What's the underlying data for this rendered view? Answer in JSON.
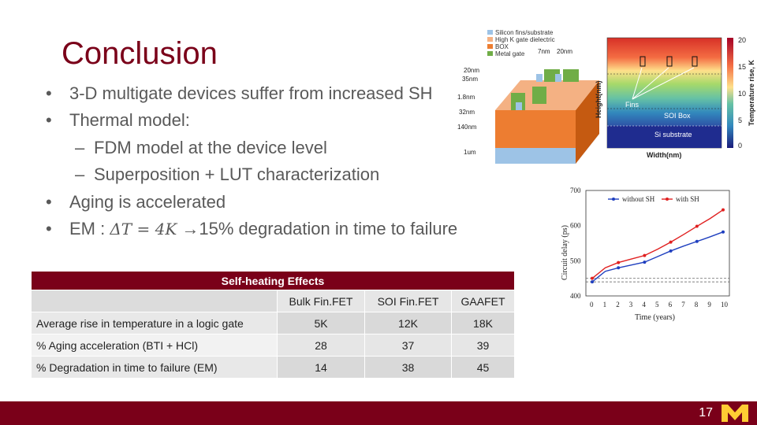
{
  "slide": {
    "title": "Conclusion",
    "bullets": [
      {
        "level": 1,
        "mark": "•",
        "text": "3-D multigate devices suffer from increased SH"
      },
      {
        "level": 1,
        "mark": "•",
        "text": "Thermal model:"
      },
      {
        "level": 2,
        "mark": "–",
        "text": "FDM model at the device level"
      },
      {
        "level": 2,
        "mark": "–",
        "text": "Superposition + LUT characterization"
      },
      {
        "level": 1,
        "mark": "•",
        "text": "Aging is accelerated"
      }
    ],
    "em_bullet": {
      "mark": "•",
      "prefix": "EM : ",
      "math": "ΔT = 4K",
      "arrow": " →",
      "suffix": "15% degradation in time to failure"
    },
    "page_number": "17"
  },
  "table": {
    "title": "Self-heating Effects",
    "columns": [
      "",
      "Bulk Fin.FET",
      "SOI Fin.FET",
      "GAAFET"
    ],
    "rows": [
      [
        "Average rise in temperature in a logic gate",
        "5K",
        "12K",
        "18K"
      ],
      [
        "% Aging acceleration (BTI + HCl)",
        "28",
        "37",
        "39"
      ],
      [
        "% Degradation in time to failure (EM)",
        "14",
        "38",
        "45"
      ]
    ]
  },
  "thermal_figure": {
    "legend": [
      "Silicon fins/substrate",
      "High K gate dielectric",
      "BOX",
      "Metal gate"
    ],
    "legend_colors": [
      "#9dc3e6",
      "#f4b183",
      "#ed7d31",
      "#70ad47"
    ],
    "dims": [
      "7nm",
      "20nm",
      "20nm",
      "35nm",
      "1.8nm",
      "32nm",
      "140nm",
      "1um"
    ],
    "heatmap_labels": [
      "Fins",
      "SOI Box",
      "Si substrate"
    ],
    "x_label": "Width(nm)",
    "y_label": "Height(nm)",
    "colorbar_label": "Temperature rise, K",
    "colorbar_ticks": [
      "20",
      "15",
      "10",
      "5",
      "0"
    ]
  },
  "chart_data": {
    "type": "line",
    "x": [
      0,
      1,
      2,
      3,
      4,
      5,
      6,
      7,
      8,
      9,
      10
    ],
    "series": [
      {
        "name": "without SH",
        "color": "#1f3fbf",
        "values": [
          440,
          470,
          480,
          488,
          496,
          512,
          528,
          542,
          555,
          568,
          582
        ]
      },
      {
        "name": "with SH",
        "color": "#e02020",
        "values": [
          450,
          480,
          495,
          505,
          515,
          533,
          553,
          575,
          598,
          620,
          645
        ]
      }
    ],
    "dashed_lines": [
      {
        "color": "#555555",
        "value": 440
      },
      {
        "color": "#555555",
        "value": 450
      }
    ],
    "xlabel": "Time (years)",
    "ylabel": "Circuit delay (ps)",
    "xlim": [
      0,
      10
    ],
    "ylim": [
      400,
      700
    ],
    "x_ticks": [
      0,
      1,
      2,
      3,
      4,
      5,
      6,
      7,
      8,
      9,
      10
    ],
    "y_ticks": [
      400,
      500,
      600,
      700
    ],
    "legend_placement": "top"
  }
}
